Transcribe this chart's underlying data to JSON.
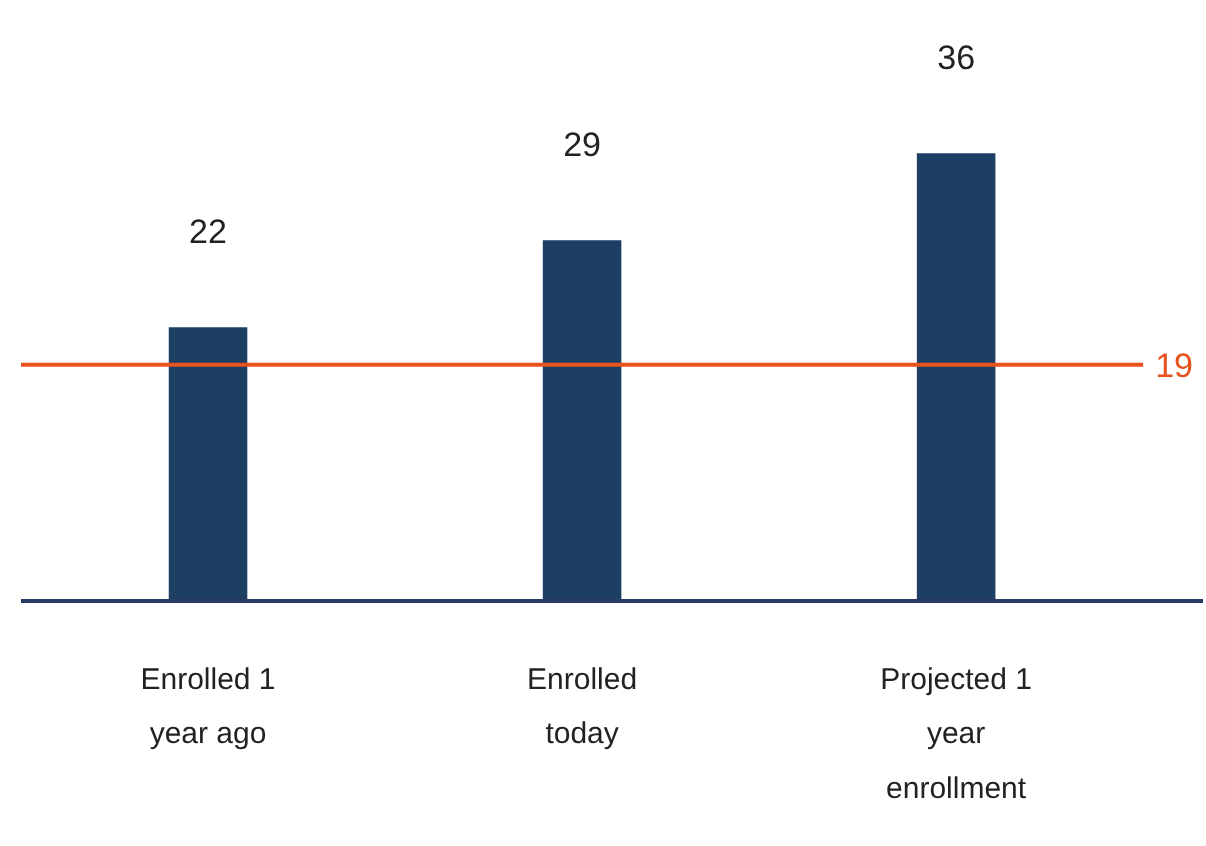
{
  "chart_data": {
    "type": "bar",
    "categories": [
      "Enrolled 1\nyear ago",
      "Enrolled\ntoday",
      "Projected 1\nyear\nenrollment"
    ],
    "values": [
      22,
      29,
      36
    ],
    "color": "#1d3f63",
    "data_labels": true,
    "grid": false,
    "ref_lines": [
      {
        "axis": "y",
        "value": 19,
        "label": "19",
        "color": "#e8521c"
      }
    ]
  }
}
